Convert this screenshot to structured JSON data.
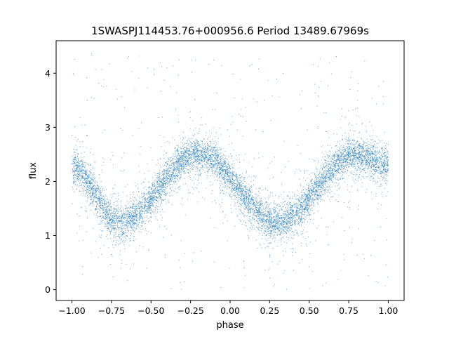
{
  "chart_data": {
    "type": "scatter",
    "title": "1SWASPJ114453.76+000956.6 Period 13489.67969s",
    "xlabel": "phase",
    "ylabel": "flux",
    "xlim": [
      -1.1,
      1.1
    ],
    "ylim": [
      -0.2,
      4.6
    ],
    "xticks": [
      -1.0,
      -0.75,
      -0.5,
      -0.25,
      0.0,
      0.25,
      0.5,
      0.75,
      1.0
    ],
    "xtick_labels": [
      "−1.00",
      "−0.75",
      "−0.50",
      "−0.25",
      "0.00",
      "0.25",
      "0.50",
      "0.75",
      "1.00"
    ],
    "yticks": [
      0,
      1,
      2,
      3,
      4
    ],
    "ytick_labels": [
      "0",
      "1",
      "2",
      "3",
      "4"
    ],
    "grid": false,
    "marker_color": "#1f77b4",
    "curve_shape": {
      "phase_range": [
        -1.0,
        1.0
      ],
      "minima": [
        {
          "phase": -0.7,
          "flux": 1.25
        },
        {
          "phase": 0.3,
          "flux": 1.25
        }
      ],
      "maxima": [
        {
          "phase": -0.2,
          "flux": 2.5
        },
        {
          "phase": 0.8,
          "flux": 2.5
        }
      ],
      "flux_at_phase_minus_1": 2.25,
      "flux_at_phase_1": 2.3,
      "scatter_band": 0.15,
      "outlier_range": [
        0.0,
        4.4
      ]
    }
  }
}
